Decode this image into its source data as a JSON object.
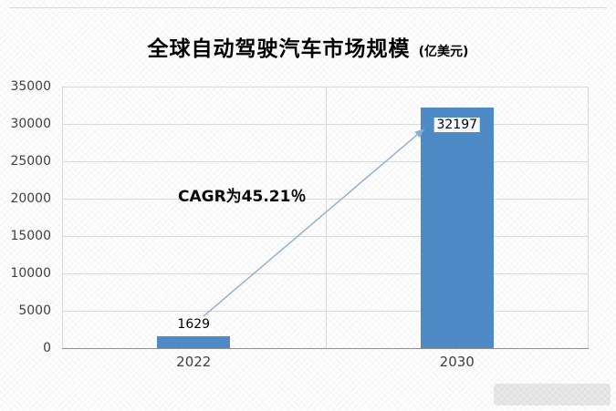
{
  "title": {
    "main": "全球自动驾驶汽车市场规模",
    "unit": "(亿美元)"
  },
  "chart_data": {
    "type": "bar",
    "categories": [
      "2022",
      "2030"
    ],
    "values": [
      1629,
      32197
    ],
    "data_labels": [
      "1629",
      "32197"
    ],
    "title": "全球自动驾驶汽车市场规模 (亿美元)",
    "xlabel": "",
    "ylabel": "",
    "ylim": [
      0,
      35000
    ],
    "ytick_step": 5000,
    "yticks": [
      0,
      5000,
      10000,
      15000,
      20000,
      25000,
      30000,
      35000
    ],
    "grid": true,
    "legend_position": "none",
    "bar_color": "#4d8ac6",
    "annotation": {
      "text": "CAGR为45.21％",
      "arrow_color": "#85aed6"
    }
  }
}
